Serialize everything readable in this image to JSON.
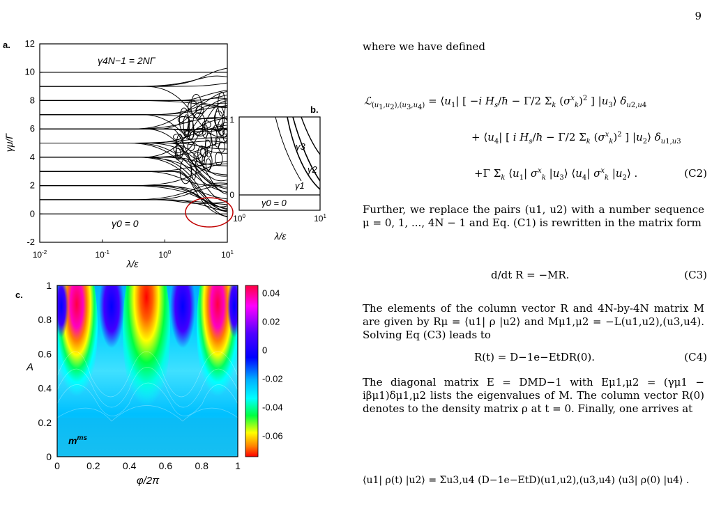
{
  "page_number": "9",
  "figure": {
    "panel_a": {
      "label": "a.",
      "y_label": "γμ/Γ",
      "x_label": "λ/ε",
      "y_ticks": [
        "12",
        "10",
        "8",
        "6",
        "4",
        "2",
        "0",
        "-2"
      ],
      "x_ticks": [
        "10-2",
        "10-1",
        "100",
        "101"
      ],
      "top_annotation": "γ4N−1 = 2NΓ",
      "bottom_annotation": "γ0 = 0",
      "y_range": [
        -2,
        12
      ],
      "x_range_log10": [
        -2,
        1
      ],
      "highlight_color": "#c00000"
    },
    "panel_b": {
      "label": "b.",
      "x_label": "λ/ε",
      "x_ticks": [
        "100",
        "101"
      ],
      "y_ticks": [
        "1",
        "0"
      ],
      "annotations": [
        "γ3",
        "γ2",
        "γ1",
        "γ0 = 0"
      ]
    },
    "panel_c": {
      "label": "c.",
      "y_label": "A",
      "x_label": "φ/2π",
      "y_ticks": [
        "1",
        "0.8",
        "0.6",
        "0.4",
        "0.2",
        "0"
      ],
      "x_ticks": [
        "0",
        "0.2",
        "0.4",
        "0.6",
        "0.8",
        "1"
      ],
      "colorbar_ticks": [
        "0.04",
        "0.02",
        "0",
        "-0.02",
        "-0.04",
        "-0.06"
      ],
      "inset_label": "mms"
    }
  },
  "text": {
    "intro": "where we have defined",
    "eq_c2_tag": "(C2)",
    "para2": "Further, we replace the pairs (u1, u2) with a number sequence μ = 0, 1, ..., 4N − 1 and Eq. (C1) is rewritten in the matrix form",
    "eq_c3": "d/dt R = −MR.",
    "eq_c3_tag": "(C3)",
    "para3": "The elements of the column vector R and 4N-by-4N matrix M are given by Rμ = ⟨u1| ρ |u2⟩ and Mμ1,μ2 = −L(u1,u2),(u3,u4). Solving Eq (C3) leads to",
    "eq_c4": "R(t) = D−1e−EtDR(0).",
    "eq_c4_tag": "(C4)",
    "para4": "The diagonal matrix E = DMD−1 with Eμ1,μ2 = (γμ1 − iβμ1)δμ1,μ2 lists the eigenvalues of M. The column vector R(0) denotes to the density matrix ρ at t = 0. Finally, one arrives at",
    "eq_final": "⟨u1| ρ(t) |u2⟩ = Σu3,u4 (D−1e−EtD)(u1,u2),(u3,u4) ⟨u3| ρ(0) |u4⟩ ."
  }
}
